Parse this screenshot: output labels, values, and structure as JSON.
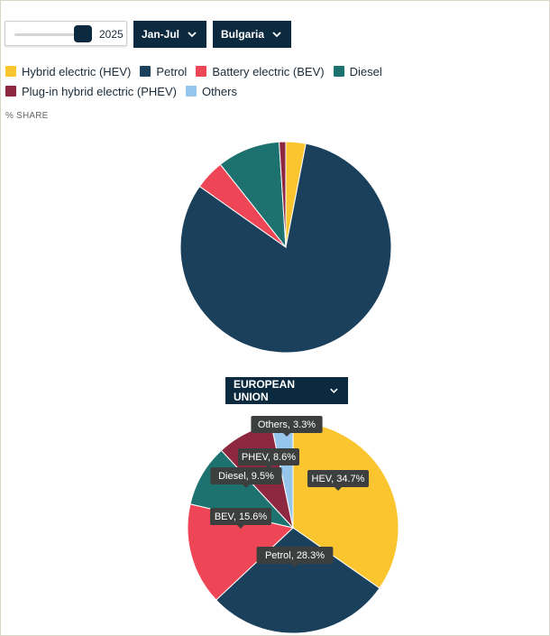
{
  "controls": {
    "year_value": "2025",
    "period_label": "Jan-Jul",
    "country_label": "Bulgaria"
  },
  "legend": {
    "items": [
      {
        "label": "Hybrid electric (HEV)",
        "color": "#fbc52f"
      },
      {
        "label": "Petrol",
        "color": "#1b405c"
      },
      {
        "label": "Battery electric (BEV)",
        "color": "#ee4656"
      },
      {
        "label": "Diesel",
        "color": "#1d7270"
      },
      {
        "label": "Plug-in hybrid electric (PHEV)",
        "color": "#8e2740"
      },
      {
        "label": "Others",
        "color": "#96c6ec"
      }
    ]
  },
  "unit_label": "% SHARE",
  "region_selector_label": "EUROPEAN UNION",
  "chart_data": [
    {
      "type": "pie",
      "title": "",
      "slices": [
        {
          "label": "Hybrid electric (HEV)",
          "value": 3.0,
          "color": "#fbc52f"
        },
        {
          "label": "Petrol",
          "value": 80.5,
          "color": "#1b405c"
        },
        {
          "label": "Battery electric (BEV)",
          "value": 4.5,
          "color": "#ee4656"
        },
        {
          "label": "Diesel",
          "value": 9.5,
          "color": "#1d7270"
        },
        {
          "label": "Plug-in hybrid electric (PHEV)",
          "value": 1.0,
          "color": "#8e2740"
        },
        {
          "label": "Others",
          "value": 0,
          "color": "#96c6ec"
        }
      ]
    },
    {
      "type": "pie",
      "title": "",
      "slices": [
        {
          "label": "Hybrid electric (HEV)",
          "value": 34.7,
          "color": "#fbc52f",
          "data_label": "HEV, 34.7%"
        },
        {
          "label": "Petrol",
          "value": 28.3,
          "color": "#1b405c",
          "data_label": "Petrol, 28.3%"
        },
        {
          "label": "Battery electric (BEV)",
          "value": 15.6,
          "color": "#ee4656",
          "data_label": "BEV, 15.6%"
        },
        {
          "label": "Diesel",
          "value": 9.5,
          "color": "#1d7270",
          "data_label": "Diesel, 9.5%"
        },
        {
          "label": "Plug-in hybrid electric (PHEV)",
          "value": 8.6,
          "color": "#8e2740",
          "data_label": "PHEV, 8.6%"
        },
        {
          "label": "Others",
          "value": 3.3,
          "color": "#96c6ec",
          "data_label": "Others, 3.3%"
        }
      ]
    }
  ]
}
